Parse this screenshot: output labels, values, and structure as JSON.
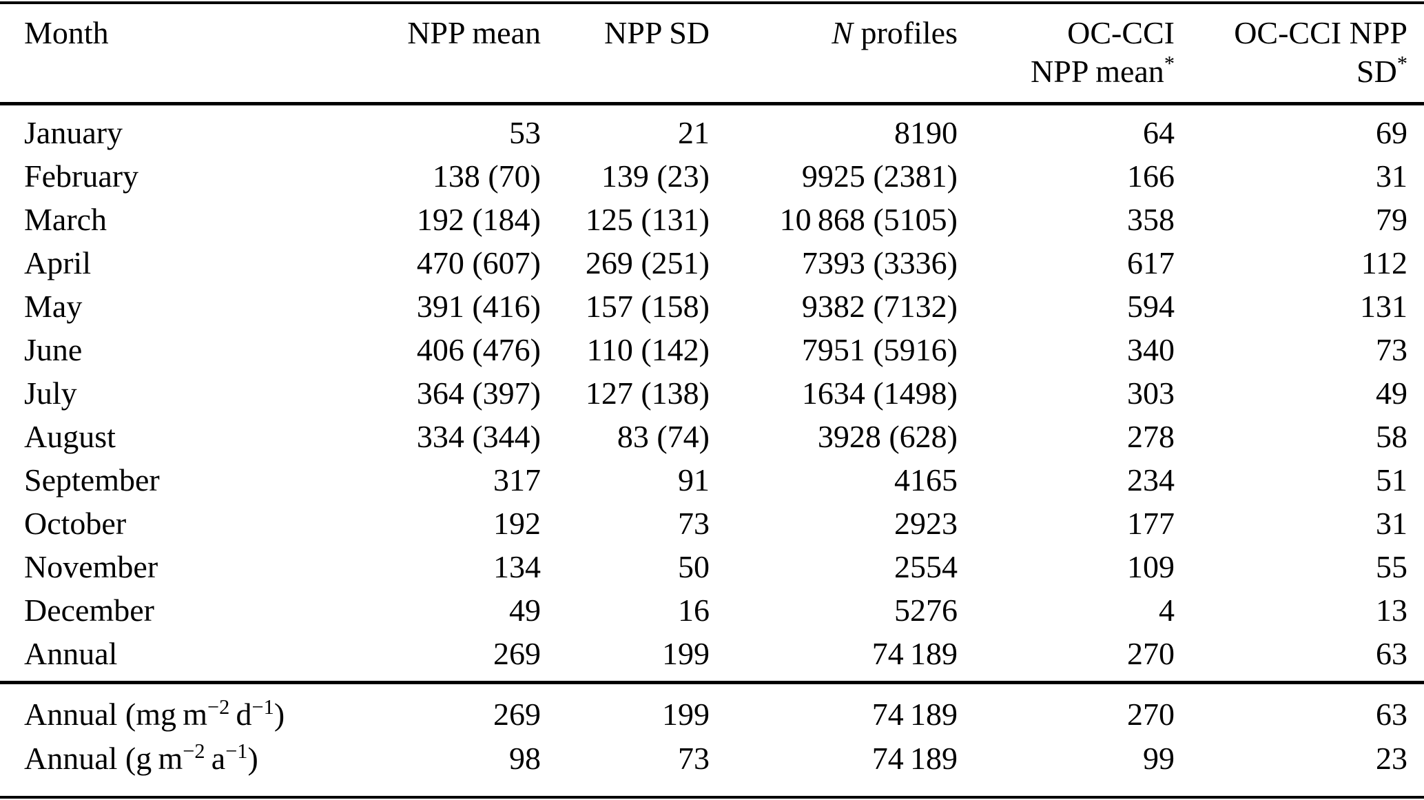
{
  "table": {
    "columns": [
      {
        "line1": "Month",
        "line2": ""
      },
      {
        "line1": "NPP mean",
        "line2": ""
      },
      {
        "line1": "NPP SD",
        "line2": ""
      },
      {
        "line1": [
          {
            "t": "N",
            "i": true
          },
          {
            "t": " profiles"
          }
        ],
        "line2": ""
      },
      {
        "line1": "OC-CCI",
        "line2": [
          {
            "t": "NPP mean"
          },
          {
            "t": "*",
            "sup": true
          }
        ]
      },
      {
        "line1": "OC-CCI NPP",
        "line2": [
          {
            "t": "SD"
          },
          {
            "t": "*",
            "sup": true
          }
        ]
      }
    ],
    "rows": [
      {
        "cells": [
          "January",
          "53",
          "21",
          "8190",
          "64",
          "69"
        ]
      },
      {
        "cells": [
          "February",
          "138 (70)",
          "139 (23)",
          "9925 (2381)",
          "166",
          "31"
        ]
      },
      {
        "cells": [
          "March",
          "192 (184)",
          "125 (131)",
          "10 868 (5105)",
          "358",
          "79"
        ]
      },
      {
        "cells": [
          "April",
          "470 (607)",
          "269 (251)",
          "7393 (3336)",
          "617",
          "112"
        ]
      },
      {
        "cells": [
          "May",
          "391 (416)",
          "157 (158)",
          "9382 (7132)",
          "594",
          "131"
        ]
      },
      {
        "cells": [
          "June",
          "406 (476)",
          "110 (142)",
          "7951 (5916)",
          "340",
          "73"
        ]
      },
      {
        "cells": [
          "July",
          "364 (397)",
          "127 (138)",
          "1634 (1498)",
          "303",
          "49"
        ]
      },
      {
        "cells": [
          "August",
          "334 (344)",
          "83 (74)",
          "3928 (628)",
          "278",
          "58"
        ]
      },
      {
        "cells": [
          "September",
          "317",
          "91",
          "4165",
          "234",
          "51"
        ]
      },
      {
        "cells": [
          "October",
          "192",
          "73",
          "2923",
          "177",
          "31"
        ]
      },
      {
        "cells": [
          "November",
          "134",
          "50",
          "2554",
          "109",
          "55"
        ]
      },
      {
        "cells": [
          "December",
          "49",
          "16",
          "5276",
          "4",
          "13"
        ]
      },
      {
        "cells": [
          "Annual",
          "269",
          "199",
          "74 189",
          "270",
          "63"
        ]
      }
    ],
    "unit_rows": [
      {
        "cells": [
          [
            {
              "t": "Annual (mg m"
            },
            {
              "t": "−2",
              "sup": true
            },
            {
              "t": " d"
            },
            {
              "t": "−1",
              "sup": true
            },
            {
              "t": ")"
            }
          ],
          "269",
          "199",
          "74 189",
          "270",
          "63"
        ]
      },
      {
        "cells": [
          [
            {
              "t": "Annual (g m"
            },
            {
              "t": "−2",
              "sup": true
            },
            {
              "t": " a"
            },
            {
              "t": "−1",
              "sup": true
            },
            {
              "t": ")"
            }
          ],
          "98",
          "73",
          "74 189",
          "99",
          "23"
        ]
      }
    ]
  }
}
